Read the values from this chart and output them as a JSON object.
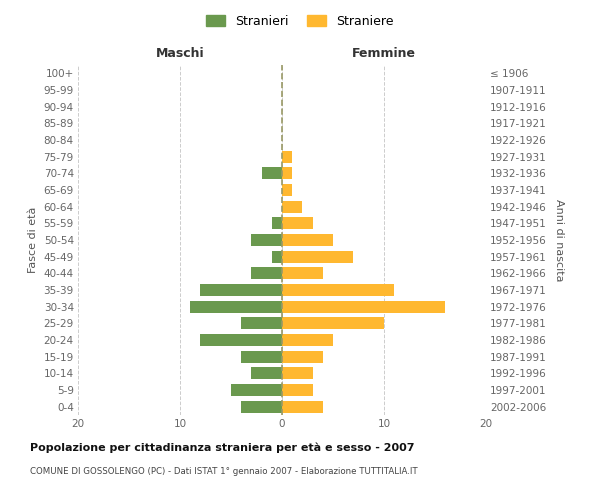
{
  "age_groups": [
    "0-4",
    "5-9",
    "10-14",
    "15-19",
    "20-24",
    "25-29",
    "30-34",
    "35-39",
    "40-44",
    "45-49",
    "50-54",
    "55-59",
    "60-64",
    "65-69",
    "70-74",
    "75-79",
    "80-84",
    "85-89",
    "90-94",
    "95-99",
    "100+"
  ],
  "birth_years": [
    "2002-2006",
    "1997-2001",
    "1992-1996",
    "1987-1991",
    "1982-1986",
    "1977-1981",
    "1972-1976",
    "1967-1971",
    "1962-1966",
    "1957-1961",
    "1952-1956",
    "1947-1951",
    "1942-1946",
    "1937-1941",
    "1932-1936",
    "1927-1931",
    "1922-1926",
    "1917-1921",
    "1912-1916",
    "1907-1911",
    "≤ 1906"
  ],
  "maschi": [
    4,
    5,
    3,
    4,
    8,
    4,
    9,
    8,
    3,
    1,
    3,
    1,
    0,
    0,
    2,
    0,
    0,
    0,
    0,
    0,
    0
  ],
  "femmine": [
    4,
    3,
    3,
    4,
    5,
    10,
    16,
    11,
    4,
    7,
    5,
    3,
    2,
    1,
    1,
    1,
    0,
    0,
    0,
    0,
    0
  ],
  "maschi_color": "#6a994e",
  "femmine_color": "#ffb830",
  "background_color": "#ffffff",
  "grid_color": "#cccccc",
  "title": "Popolazione per cittadinanza straniera per età e sesso - 2007",
  "subtitle": "COMUNE DI GOSSOLENGO (PC) - Dati ISTAT 1° gennaio 2007 - Elaborazione TUTTITALIA.IT",
  "xlabel_left": "Maschi",
  "xlabel_right": "Femmine",
  "ylabel_left": "Fasce di età",
  "ylabel_right": "Anni di nascita",
  "legend_maschi": "Stranieri",
  "legend_femmine": "Straniere",
  "xlim": 20
}
